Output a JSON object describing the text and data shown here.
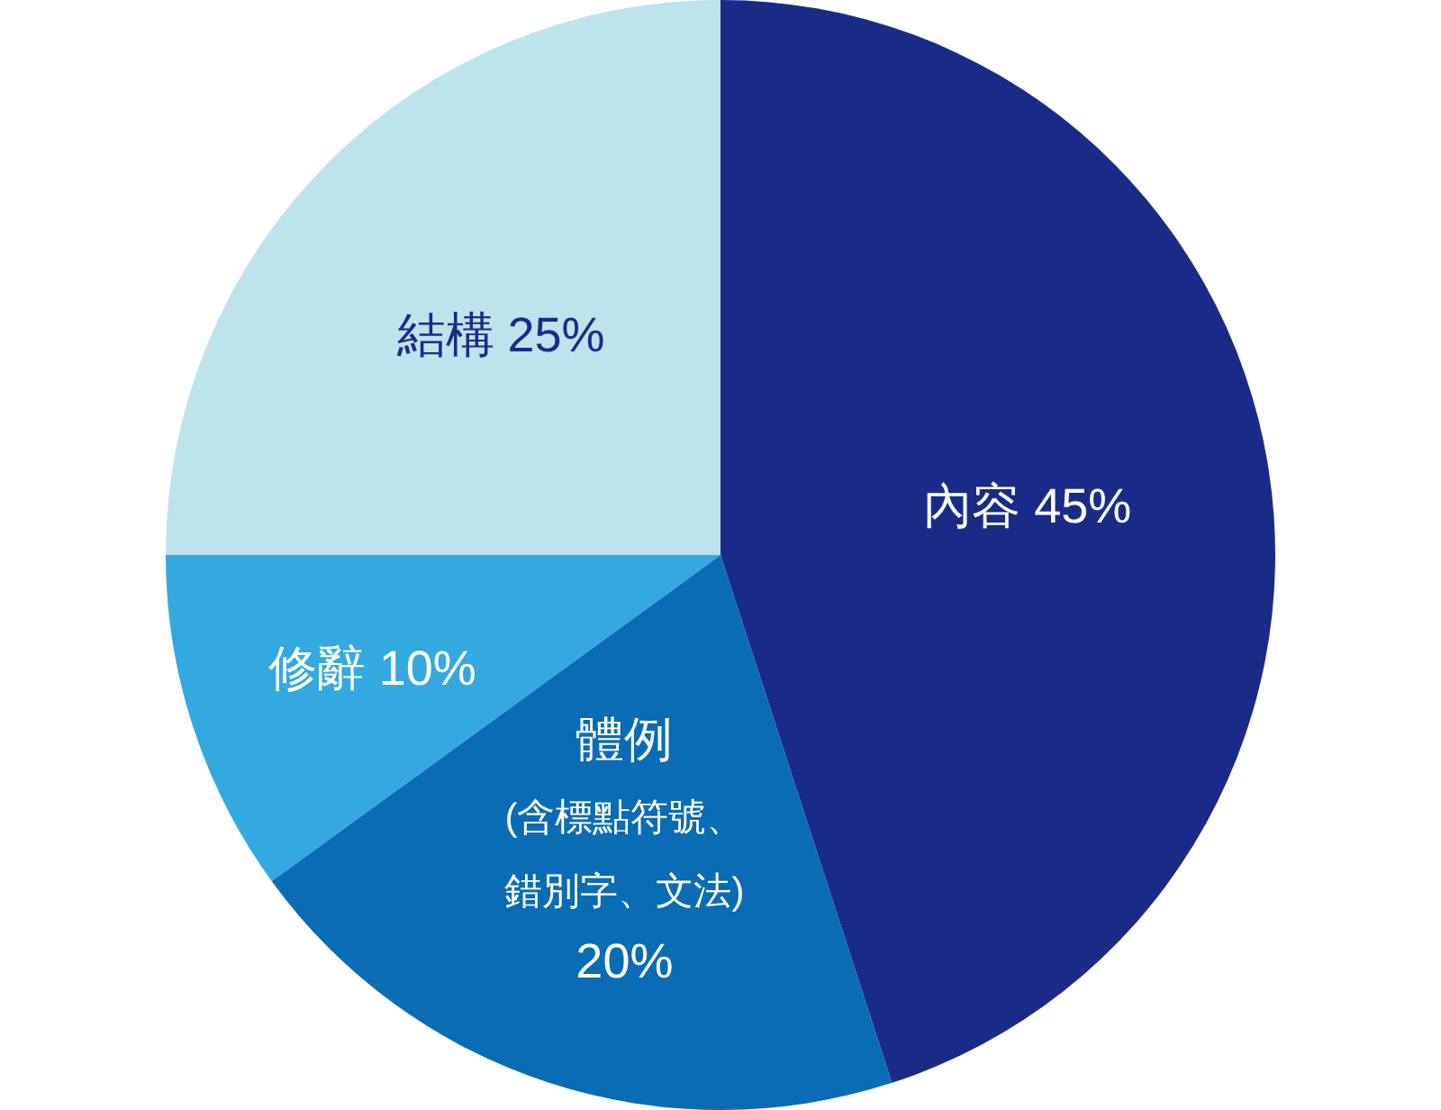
{
  "chart_data": {
    "type": "pie",
    "categories": [
      "內容",
      "體例(含標點符號、錯別字、文法)",
      "修辭",
      "結構"
    ],
    "values": [
      45,
      20,
      10,
      25
    ],
    "colors": [
      "#1a2b87",
      "#0a6cb5",
      "#33a9e0",
      "#bde3ec"
    ],
    "value_labels": [
      "45%",
      "20%",
      "10%",
      "25%"
    ]
  }
}
